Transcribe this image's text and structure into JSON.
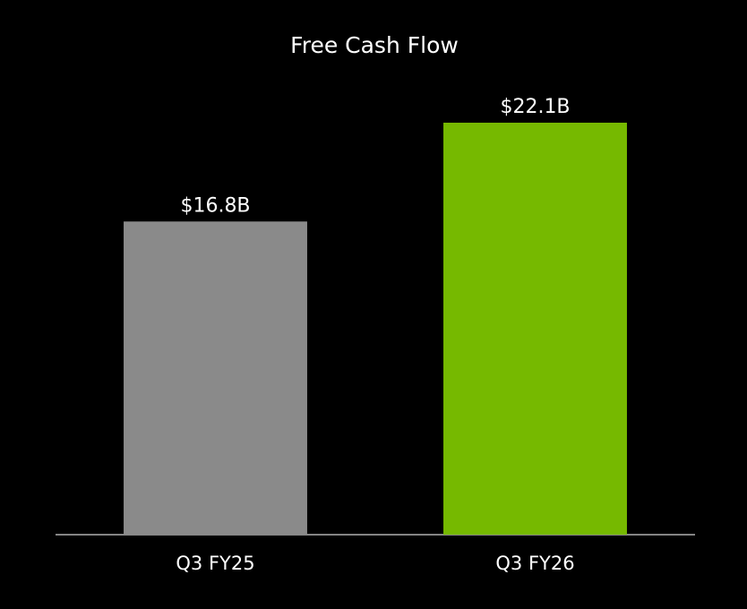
{
  "chart_data": {
    "type": "bar",
    "title": "Free Cash Flow",
    "categories": [
      "Q3 FY25",
      "Q3 FY26"
    ],
    "values": [
      16.8,
      22.1
    ],
    "value_labels": [
      "$16.8B",
      "$22.1B"
    ],
    "colors": [
      "#8a8a8a",
      "#76b900"
    ]
  }
}
